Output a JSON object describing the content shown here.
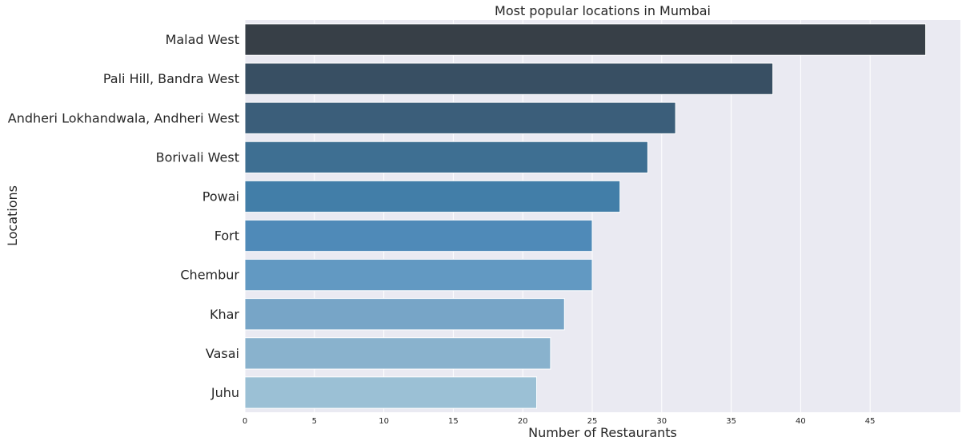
{
  "chart_data": {
    "type": "bar",
    "orientation": "horizontal",
    "title": "Most popular locations in Mumbai",
    "xlabel": "Number of Restaurants",
    "ylabel": "Locations",
    "categories": [
      "Malad West",
      "Pali Hill, Bandra West",
      "Andheri Lokhandwala, Andheri West",
      "Borivali West",
      "Powai",
      "Fort",
      "Chembur",
      "Khar",
      "Vasai",
      "Juhu"
    ],
    "values": [
      49,
      38,
      31,
      29,
      27,
      25,
      25,
      23,
      22,
      21
    ],
    "xlim": [
      0,
      51.5
    ],
    "xticks": [
      0,
      5,
      10,
      15,
      20,
      25,
      30,
      35,
      40,
      45
    ],
    "grid": true,
    "background_color": "#eaeaf2",
    "grid_color": "#ffffff",
    "bar_colors": [
      "#373f47",
      "#384f63",
      "#3b5e7a",
      "#3e6f92",
      "#427ea8",
      "#4f8ab8",
      "#6299c2",
      "#77a5c7",
      "#89b2cd",
      "#9bc0d5"
    ]
  }
}
